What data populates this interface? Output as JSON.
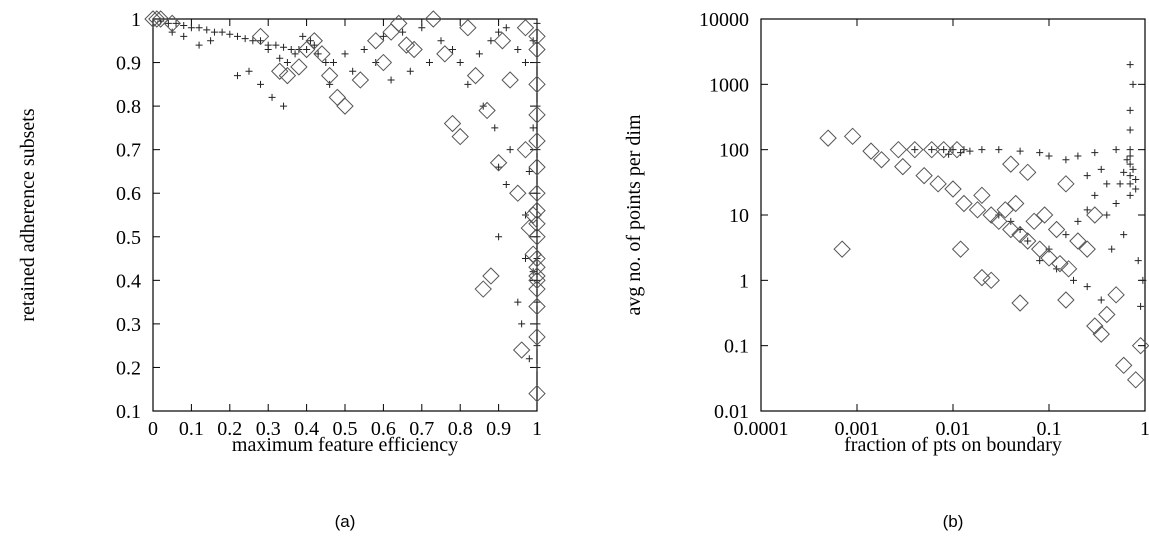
{
  "chart_data": [
    {
      "type": "scatter",
      "panel_label": "(a)",
      "xlabel": "maximum feature efficiency",
      "ylabel": "retained adherence subsets",
      "xlim": [
        0,
        1
      ],
      "ylim": [
        0.1,
        1
      ],
      "xticks": [
        0,
        0.1,
        0.2,
        0.3,
        0.4,
        0.5,
        0.6,
        0.7,
        0.8,
        0.9,
        1
      ],
      "xtick_labels": [
        "0",
        "0.1",
        "0.2",
        "0.3",
        "0.4",
        "0.5",
        "0.6",
        "0.7",
        "0.8",
        "0.9",
        "1"
      ],
      "yticks": [
        0.1,
        0.2,
        0.3,
        0.4,
        0.5,
        0.6,
        0.7,
        0.8,
        0.9,
        1
      ],
      "ytick_labels": [
        "0.1",
        "0.2",
        "0.3",
        "0.4",
        "0.5",
        "0.6",
        "0.7",
        "0.8",
        "0.9",
        "1"
      ],
      "grid": false,
      "series": [
        {
          "marker": "plus",
          "color": "#000000",
          "points": [
            [
              0.02,
              0.995
            ],
            [
              0.04,
              0.99
            ],
            [
              0.06,
              0.99
            ],
            [
              0.08,
              0.985
            ],
            [
              0.1,
              0.98
            ],
            [
              0.12,
              0.98
            ],
            [
              0.14,
              0.975
            ],
            [
              0.16,
              0.97
            ],
            [
              0.18,
              0.97
            ],
            [
              0.2,
              0.965
            ],
            [
              0.22,
              0.96
            ],
            [
              0.24,
              0.955
            ],
            [
              0.26,
              0.95
            ],
            [
              0.28,
              0.95
            ],
            [
              0.3,
              0.94
            ],
            [
              0.32,
              0.94
            ],
            [
              0.34,
              0.935
            ],
            [
              0.36,
              0.93
            ],
            [
              0.38,
              0.93
            ],
            [
              0.4,
              0.93
            ],
            [
              0.41,
              0.95
            ],
            [
              0.42,
              0.94
            ],
            [
              0.43,
              0.92
            ],
            [
              0.39,
              0.96
            ],
            [
              0.37,
              0.92
            ],
            [
              0.35,
              0.9
            ],
            [
              0.33,
              0.91
            ],
            [
              0.45,
              0.9
            ],
            [
              0.47,
              0.9
            ],
            [
              0.5,
              0.92
            ],
            [
              0.55,
              0.93
            ],
            [
              0.6,
              0.96
            ],
            [
              0.65,
              0.97
            ],
            [
              0.7,
              0.98
            ],
            [
              0.75,
              0.95
            ],
            [
              0.8,
              0.9
            ],
            [
              0.85,
              0.92
            ],
            [
              0.88,
              0.95
            ],
            [
              0.9,
              0.97
            ],
            [
              0.92,
              0.98
            ],
            [
              0.95,
              0.93
            ],
            [
              0.97,
              0.9
            ],
            [
              0.99,
              0.95
            ],
            [
              1,
              0.99
            ],
            [
              1,
              0.9
            ],
            [
              1,
              0.8
            ],
            [
              1,
              0.7
            ],
            [
              1,
              0.6
            ],
            [
              1,
              0.5
            ],
            [
              1,
              0.45
            ],
            [
              1,
              0.4
            ],
            [
              1,
              0.35
            ],
            [
              1,
              0.3
            ],
            [
              1,
              0.25
            ],
            [
              1,
              0.2
            ],
            [
              0.99,
              0.75
            ],
            [
              0.98,
              0.65
            ],
            [
              0.97,
              0.55
            ],
            [
              0.99,
              0.42
            ],
            [
              0.96,
              0.3
            ],
            [
              0.98,
              0.22
            ],
            [
              0.97,
              0.45
            ],
            [
              0.95,
              0.35
            ],
            [
              0.92,
              0.62
            ],
            [
              0.9,
              0.5
            ],
            [
              0.3,
              0.93
            ],
            [
              0.25,
              0.88
            ],
            [
              0.22,
              0.87
            ],
            [
              0.28,
              0.85
            ],
            [
              0.31,
              0.82
            ],
            [
              0.34,
              0.8
            ],
            [
              0.46,
              0.85
            ],
            [
              0.52,
              0.88
            ],
            [
              0.58,
              0.9
            ],
            [
              0.62,
              0.86
            ],
            [
              0.67,
              0.88
            ],
            [
              0.72,
              0.9
            ],
            [
              0.78,
              0.93
            ],
            [
              0.82,
              0.85
            ],
            [
              0.86,
              0.8
            ],
            [
              0.89,
              0.75
            ],
            [
              0.93,
              0.7
            ],
            [
              0.9,
              0.66
            ],
            [
              0.15,
              0.95
            ],
            [
              0.05,
              0.97
            ],
            [
              0.08,
              0.96
            ],
            [
              0.12,
              0.94
            ]
          ]
        },
        {
          "marker": "diamond",
          "color": "#000000",
          "points": [
            [
              0,
              1
            ],
            [
              0.01,
              1
            ],
            [
              0.02,
              1
            ],
            [
              0.05,
              0.99
            ],
            [
              0.28,
              0.96
            ],
            [
              0.33,
              0.88
            ],
            [
              0.35,
              0.87
            ],
            [
              0.38,
              0.89
            ],
            [
              0.4,
              0.93
            ],
            [
              0.42,
              0.95
            ],
            [
              0.44,
              0.92
            ],
            [
              0.46,
              0.87
            ],
            [
              0.48,
              0.82
            ],
            [
              0.5,
              0.8
            ],
            [
              0.54,
              0.86
            ],
            [
              0.58,
              0.95
            ],
            [
              0.62,
              0.97
            ],
            [
              0.64,
              0.99
            ],
            [
              0.68,
              0.93
            ],
            [
              0.73,
              1
            ],
            [
              0.76,
              0.92
            ],
            [
              0.78,
              0.76
            ],
            [
              0.8,
              0.73
            ],
            [
              0.84,
              0.87
            ],
            [
              0.87,
              0.79
            ],
            [
              0.9,
              0.67
            ],
            [
              0.91,
              0.95
            ],
            [
              0.93,
              0.86
            ],
            [
              0.95,
              0.6
            ],
            [
              0.88,
              0.41
            ],
            [
              0.86,
              0.38
            ],
            [
              0.96,
              0.24
            ],
            [
              0.97,
              0.7
            ],
            [
              0.98,
              0.52
            ],
            [
              1,
              0.96
            ],
            [
              1,
              0.93
            ],
            [
              1,
              0.85
            ],
            [
              1,
              0.78
            ],
            [
              1,
              0.72
            ],
            [
              1,
              0.66
            ],
            [
              1,
              0.6
            ],
            [
              1,
              0.56
            ],
            [
              1,
              0.53
            ],
            [
              1,
              0.5
            ],
            [
              1,
              0.45
            ],
            [
              1,
              0.43
            ],
            [
              1,
              0.41
            ],
            [
              1,
              0.4
            ],
            [
              1,
              0.38
            ],
            [
              1,
              0.34
            ],
            [
              1,
              0.27
            ],
            [
              1,
              0.14
            ],
            [
              0.99,
              0.46
            ],
            [
              0.99,
              0.55
            ],
            [
              0.6,
              0.9
            ],
            [
              0.66,
              0.94
            ],
            [
              0.97,
              0.98
            ],
            [
              0.82,
              0.98
            ]
          ]
        }
      ]
    },
    {
      "type": "scatter",
      "panel_label": "(b)",
      "xlabel": "fraction of pts on boundary",
      "ylabel": "avg no. of points per dim",
      "xscale": "log",
      "yscale": "log",
      "xlim": [
        0.0001,
        1
      ],
      "ylim": [
        0.01,
        10000
      ],
      "xticks": [
        0.0001,
        0.001,
        0.01,
        0.1,
        1
      ],
      "xtick_labels": [
        "0.0001",
        "0.001",
        "0.01",
        "0.1",
        "1"
      ],
      "yticks": [
        0.01,
        0.1,
        1,
        10,
        100,
        1000,
        10000
      ],
      "ytick_labels": [
        "0.01",
        "0.1",
        "1",
        "10",
        "100",
        "1000",
        "10000"
      ],
      "grid": false,
      "series": [
        {
          "marker": "plus",
          "color": "#000000",
          "points": [
            [
              0.004,
              100
            ],
            [
              0.006,
              100
            ],
            [
              0.008,
              100
            ],
            [
              0.01,
              100
            ],
            [
              0.013,
              100
            ],
            [
              0.02,
              100
            ],
            [
              0.03,
              100
            ],
            [
              0.05,
              95
            ],
            [
              0.08,
              90
            ],
            [
              0.1,
              80
            ],
            [
              0.15,
              70
            ],
            [
              0.2,
              80
            ],
            [
              0.3,
              90
            ],
            [
              0.5,
              100
            ],
            [
              0.7,
              100
            ],
            [
              0.7,
              80
            ],
            [
              0.7,
              60
            ],
            [
              0.7,
              40
            ],
            [
              0.7,
              30
            ],
            [
              0.7,
              20
            ],
            [
              0.75,
              50
            ],
            [
              0.8,
              35
            ],
            [
              0.8,
              25
            ],
            [
              0.65,
              70
            ],
            [
              0.6,
              45
            ],
            [
              0.55,
              30
            ],
            [
              0.7,
              200
            ],
            [
              0.7,
              400
            ],
            [
              0.75,
              1000
            ],
            [
              0.7,
              2000
            ],
            [
              0.5,
              15
            ],
            [
              0.4,
              10
            ],
            [
              0.3,
              20
            ],
            [
              0.25,
              12
            ],
            [
              0.2,
              8
            ],
            [
              0.15,
              5
            ],
            [
              0.1,
              3
            ],
            [
              0.08,
              2
            ],
            [
              0.06,
              4
            ],
            [
              0.05,
              6
            ],
            [
              0.04,
              8
            ],
            [
              0.03,
              10
            ],
            [
              0.12,
              1.5
            ],
            [
              0.18,
              1
            ],
            [
              0.25,
              0.8
            ],
            [
              0.35,
              0.5
            ],
            [
              0.45,
              3
            ],
            [
              0.6,
              5
            ],
            [
              0.85,
              2
            ],
            [
              0.9,
              0.4
            ],
            [
              0.95,
              1
            ],
            [
              0.4,
              30
            ],
            [
              0.35,
              50
            ],
            [
              0.25,
              40
            ],
            [
              0.015,
              95
            ],
            [
              0.012,
              90
            ],
            [
              0.009,
              85
            ]
          ]
        },
        {
          "marker": "diamond",
          "color": "#000000",
          "points": [
            [
              0.0005,
              150
            ],
            [
              0.0009,
              160
            ],
            [
              0.0014,
              95
            ],
            [
              0.0027,
              100
            ],
            [
              0.004,
              100
            ],
            [
              0.006,
              100
            ],
            [
              0.008,
              100
            ],
            [
              0.011,
              100
            ],
            [
              0.0018,
              70
            ],
            [
              0.003,
              55
            ],
            [
              0.005,
              40
            ],
            [
              0.007,
              30
            ],
            [
              0.01,
              25
            ],
            [
              0.013,
              15
            ],
            [
              0.018,
              12
            ],
            [
              0.025,
              10
            ],
            [
              0.03,
              8
            ],
            [
              0.04,
              6
            ],
            [
              0.05,
              5
            ],
            [
              0.06,
              4
            ],
            [
              0.08,
              3
            ],
            [
              0.1,
              2.2
            ],
            [
              0.13,
              1.8
            ],
            [
              0.16,
              1.5
            ],
            [
              0.0007,
              3
            ],
            [
              0.012,
              3
            ],
            [
              0.02,
              1.1
            ],
            [
              0.025,
              1
            ],
            [
              0.05,
              0.45
            ],
            [
              0.15,
              0.5
            ],
            [
              0.3,
              0.2
            ],
            [
              0.35,
              0.15
            ],
            [
              0.4,
              0.3
            ],
            [
              0.6,
              0.05
            ],
            [
              0.8,
              0.03
            ],
            [
              0.9,
              0.1
            ],
            [
              0.02,
              20
            ],
            [
              0.035,
              12
            ],
            [
              0.045,
              15
            ],
            [
              0.07,
              8
            ],
            [
              0.09,
              10
            ],
            [
              0.12,
              6
            ],
            [
              0.2,
              4
            ],
            [
              0.25,
              3
            ],
            [
              0.3,
              10
            ],
            [
              0.5,
              0.6
            ],
            [
              0.04,
              60
            ],
            [
              0.06,
              45
            ],
            [
              0.15,
              30
            ]
          ]
        }
      ]
    }
  ]
}
